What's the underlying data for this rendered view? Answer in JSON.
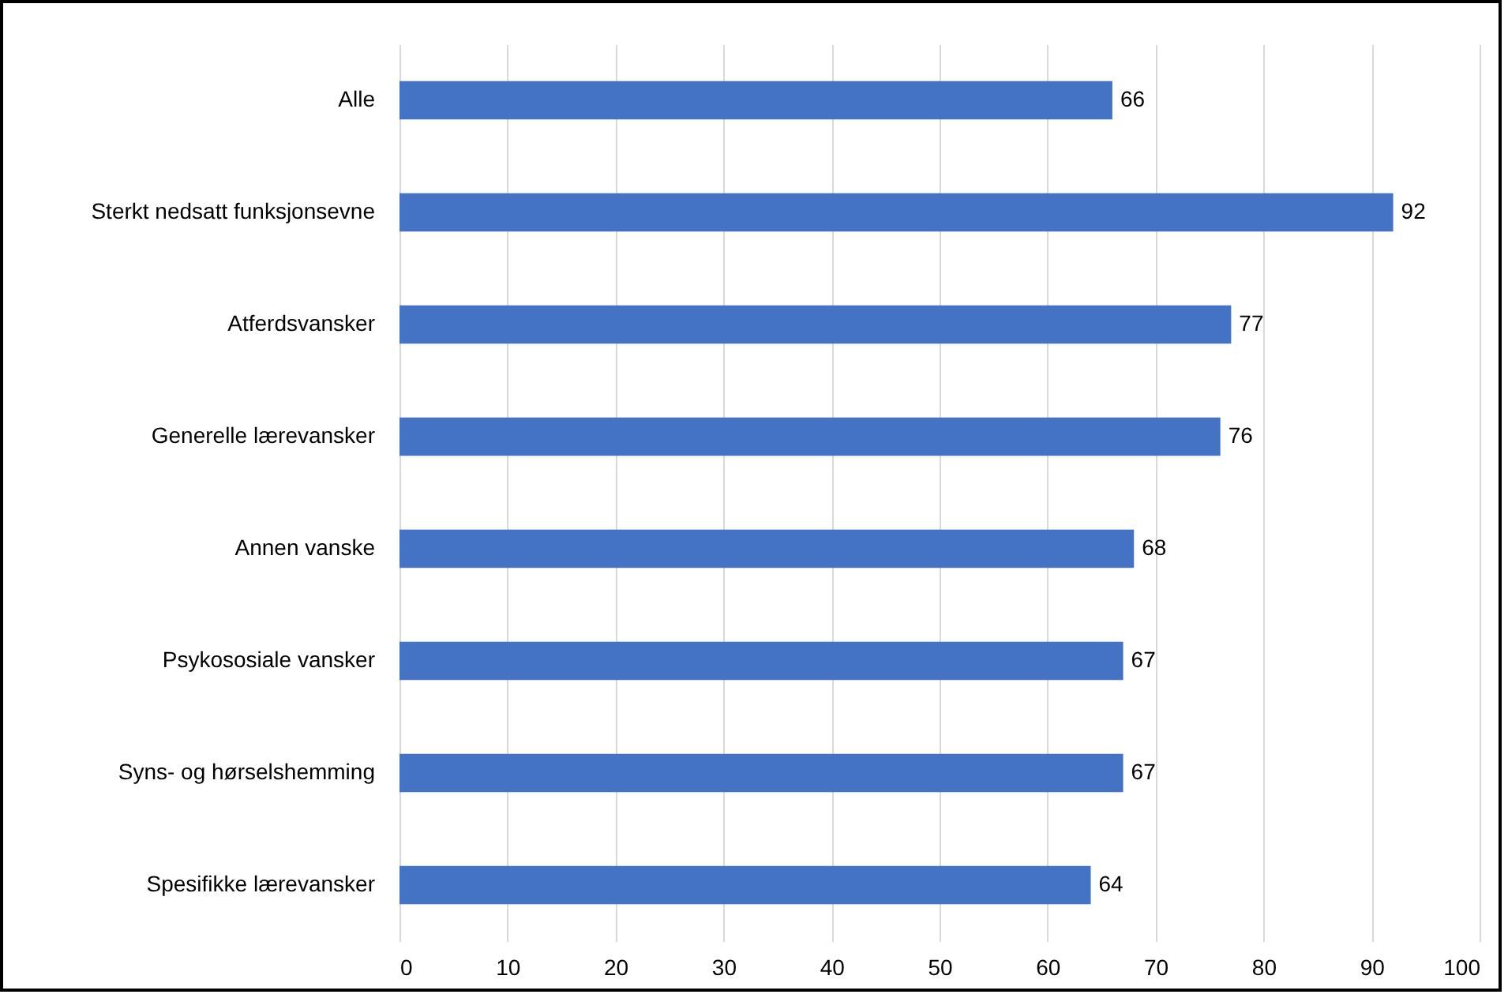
{
  "chart_data": {
    "type": "bar",
    "orientation": "horizontal",
    "categories": [
      "Alle",
      "Sterkt nedsatt funksjonsevne",
      "Atferdsvansker",
      "Generelle lærevansker",
      "Annen vanske",
      "Psykososiale vansker",
      "Syns- og hørselshemming",
      "Spesifikke lærevansker"
    ],
    "values": [
      66,
      92,
      77,
      76,
      68,
      67,
      67,
      64
    ],
    "color": "#4472c4",
    "data_labels": true,
    "xlim": [
      0,
      100
    ],
    "xticks": [
      0,
      10,
      20,
      30,
      40,
      50,
      60,
      70,
      80,
      90,
      100
    ],
    "grid": "x"
  }
}
